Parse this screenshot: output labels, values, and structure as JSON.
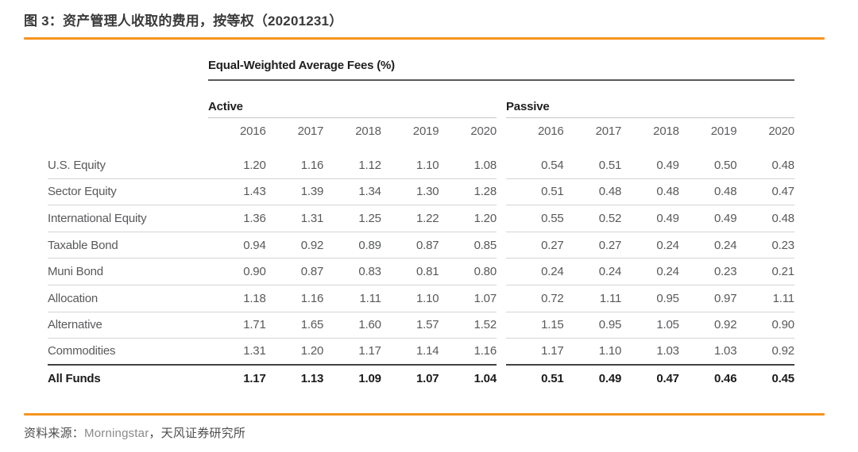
{
  "figure": {
    "title": "图 3：资产管理人收取的费用，按等权（20201231）"
  },
  "table": {
    "main_header": "Equal-Weighted Average Fees (%)",
    "group_headers": [
      "Active",
      "Passive"
    ],
    "years": [
      "2016",
      "2017",
      "2018",
      "2019",
      "2020"
    ],
    "rows": [
      {
        "label": "U.S. Equity",
        "active": [
          "1.20",
          "1.16",
          "1.12",
          "1.10",
          "1.08"
        ],
        "passive": [
          "0.54",
          "0.51",
          "0.49",
          "0.50",
          "0.48"
        ],
        "style": "normal"
      },
      {
        "label": "Sector Equity",
        "active": [
          "1.43",
          "1.39",
          "1.34",
          "1.30",
          "1.28"
        ],
        "passive": [
          "0.51",
          "0.48",
          "0.48",
          "0.48",
          "0.47"
        ],
        "style": "normal"
      },
      {
        "label": "International Equity",
        "active": [
          "1.36",
          "1.31",
          "1.25",
          "1.22",
          "1.20"
        ],
        "passive": [
          "0.55",
          "0.52",
          "0.49",
          "0.49",
          "0.48"
        ],
        "style": "normal"
      },
      {
        "label": "Taxable Bond",
        "active": [
          "0.94",
          "0.92",
          "0.89",
          "0.87",
          "0.85"
        ],
        "passive": [
          "0.27",
          "0.27",
          "0.24",
          "0.24",
          "0.23"
        ],
        "style": "normal"
      },
      {
        "label": "Muni Bond",
        "active": [
          "0.90",
          "0.87",
          "0.83",
          "0.81",
          "0.80"
        ],
        "passive": [
          "0.24",
          "0.24",
          "0.24",
          "0.23",
          "0.21"
        ],
        "style": "normal"
      },
      {
        "label": "Allocation",
        "active": [
          "1.18",
          "1.16",
          "1.11",
          "1.10",
          "1.07"
        ],
        "passive": [
          "0.72",
          "1.11",
          "0.95",
          "0.97",
          "1.11"
        ],
        "style": "normal"
      },
      {
        "label": "Alternative",
        "active": [
          "1.71",
          "1.65",
          "1.60",
          "1.57",
          "1.52"
        ],
        "passive": [
          "1.15",
          "0.95",
          "1.05",
          "0.92",
          "0.90"
        ],
        "style": "normal"
      },
      {
        "label": "Commodities",
        "active": [
          "1.31",
          "1.20",
          "1.17",
          "1.14",
          "1.16"
        ],
        "passive": [
          "1.17",
          "1.10",
          "1.03",
          "1.03",
          "0.92"
        ],
        "style": "thick"
      },
      {
        "label": "All Funds",
        "active": [
          "1.17",
          "1.13",
          "1.09",
          "1.07",
          "1.04"
        ],
        "passive": [
          "0.51",
          "0.49",
          "0.47",
          "0.46",
          "0.45"
        ],
        "style": "total"
      }
    ]
  },
  "footer": {
    "prefix": "资料来源：",
    "source": "Morningstar",
    "suffix": "，天风证券研究所"
  },
  "colors": {
    "accent_orange": "#F7941E",
    "dark_rule": "#414141",
    "header_rule": "#58595b",
    "light_rule": "#d4d4d4",
    "body_text": "#58595b",
    "bold_text": "#1f1f1f"
  },
  "chart_data": {
    "type": "table",
    "title": "Equal-Weighted Average Fees (%)",
    "column_groups": [
      "Active",
      "Passive"
    ],
    "years": [
      2016,
      2017,
      2018,
      2019,
      2020
    ],
    "rows": [
      {
        "category": "U.S. Equity",
        "active": [
          1.2,
          1.16,
          1.12,
          1.1,
          1.08
        ],
        "passive": [
          0.54,
          0.51,
          0.49,
          0.5,
          0.48
        ]
      },
      {
        "category": "Sector Equity",
        "active": [
          1.43,
          1.39,
          1.34,
          1.3,
          1.28
        ],
        "passive": [
          0.51,
          0.48,
          0.48,
          0.48,
          0.47
        ]
      },
      {
        "category": "International Equity",
        "active": [
          1.36,
          1.31,
          1.25,
          1.22,
          1.2
        ],
        "passive": [
          0.55,
          0.52,
          0.49,
          0.49,
          0.48
        ]
      },
      {
        "category": "Taxable Bond",
        "active": [
          0.94,
          0.92,
          0.89,
          0.87,
          0.85
        ],
        "passive": [
          0.27,
          0.27,
          0.24,
          0.24,
          0.23
        ]
      },
      {
        "category": "Muni Bond",
        "active": [
          0.9,
          0.87,
          0.83,
          0.81,
          0.8
        ],
        "passive": [
          0.24,
          0.24,
          0.24,
          0.23,
          0.21
        ]
      },
      {
        "category": "Allocation",
        "active": [
          1.18,
          1.16,
          1.11,
          1.1,
          1.07
        ],
        "passive": [
          0.72,
          1.11,
          0.95,
          0.97,
          1.11
        ]
      },
      {
        "category": "Alternative",
        "active": [
          1.71,
          1.65,
          1.6,
          1.57,
          1.52
        ],
        "passive": [
          1.15,
          0.95,
          1.05,
          0.92,
          0.9
        ]
      },
      {
        "category": "Commodities",
        "active": [
          1.31,
          1.2,
          1.17,
          1.14,
          1.16
        ],
        "passive": [
          1.17,
          1.1,
          1.03,
          1.03,
          0.92
        ]
      },
      {
        "category": "All Funds",
        "active": [
          1.17,
          1.13,
          1.09,
          1.07,
          1.04
        ],
        "passive": [
          0.51,
          0.49,
          0.47,
          0.46,
          0.45
        ]
      }
    ]
  }
}
